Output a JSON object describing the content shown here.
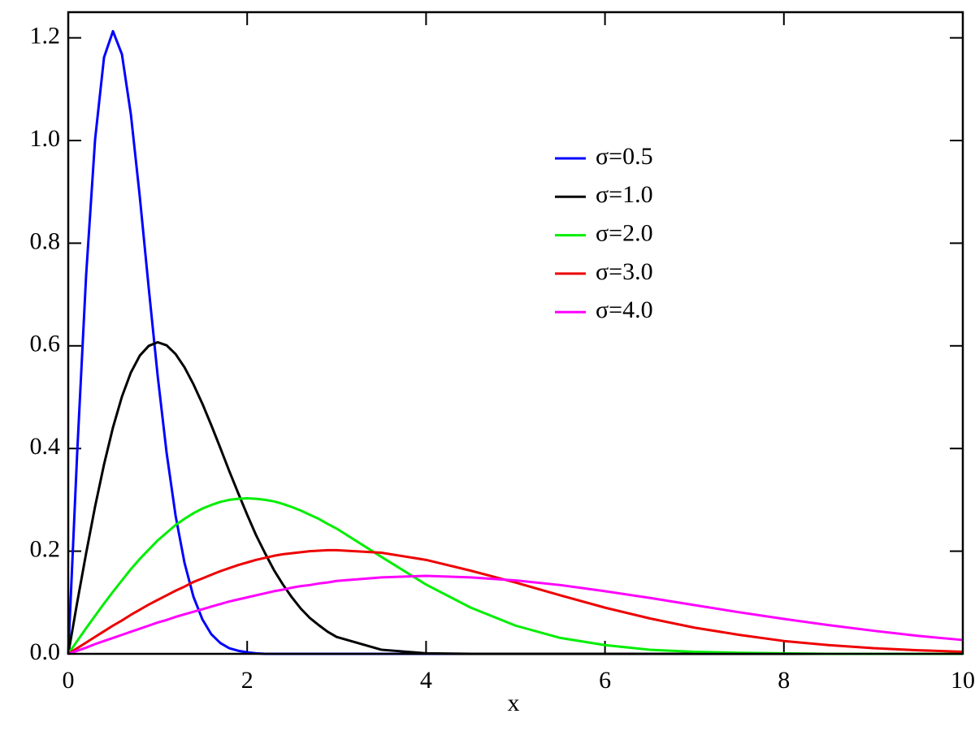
{
  "chart_data": {
    "type": "line",
    "xlabel": "x",
    "x": [
      0,
      0.1,
      0.2,
      0.3,
      0.4,
      0.5,
      0.6,
      0.7,
      0.8,
      0.9,
      1.0,
      1.1,
      1.2,
      1.3,
      1.4,
      1.5,
      1.6,
      1.7,
      1.8,
      1.9,
      2.0,
      2.1,
      2.2,
      2.3,
      2.4,
      2.5,
      2.6,
      2.7,
      2.8,
      2.9,
      3.0,
      3.5,
      4.0,
      4.5,
      5.0,
      5.5,
      6.0,
      6.5,
      7.0,
      7.5,
      8.0,
      8.5,
      9.0,
      9.5,
      10
    ],
    "series": [
      {
        "name": "σ=0.5",
        "color": "#0000ff",
        "values": [
          0,
          0.392,
          0.738,
          1.002,
          1.162,
          1.213,
          1.168,
          1.051,
          0.89,
          0.712,
          0.541,
          0.391,
          0.269,
          0.177,
          0.111,
          0.067,
          0.038,
          0.021,
          0.011,
          0.006,
          0.003,
          0.001,
          0,
          0,
          0,
          0,
          0,
          0,
          0,
          0,
          0,
          0,
          0,
          0,
          0,
          0,
          0,
          0,
          0,
          0,
          0,
          0,
          0,
          0,
          0
        ]
      },
      {
        "name": "σ=1.0",
        "color": "#000000",
        "values": [
          0,
          0.1,
          0.196,
          0.287,
          0.369,
          0.441,
          0.501,
          0.548,
          0.581,
          0.6,
          0.607,
          0.601,
          0.584,
          0.558,
          0.525,
          0.487,
          0.445,
          0.401,
          0.356,
          0.313,
          0.271,
          0.231,
          0.196,
          0.163,
          0.135,
          0.11,
          0.088,
          0.07,
          0.056,
          0.043,
          0.033,
          0.008,
          0.001,
          0,
          0,
          0,
          0,
          0,
          0,
          0,
          0,
          0,
          0,
          0,
          0
        ]
      },
      {
        "name": "σ=2.0",
        "color": "#00ee00",
        "values": [
          0,
          0.025,
          0.05,
          0.074,
          0.098,
          0.121,
          0.143,
          0.165,
          0.185,
          0.203,
          0.221,
          0.236,
          0.251,
          0.263,
          0.274,
          0.283,
          0.29,
          0.296,
          0.3,
          0.302,
          0.303,
          0.302,
          0.3,
          0.297,
          0.292,
          0.286,
          0.279,
          0.271,
          0.263,
          0.253,
          0.244,
          0.189,
          0.135,
          0.09,
          0.055,
          0.031,
          0.017,
          0.008,
          0.004,
          0.002,
          0.001,
          0,
          0,
          0,
          0
        ]
      },
      {
        "name": "σ=3.0",
        "color": "#ee0000",
        "values": [
          0,
          0.011,
          0.022,
          0.033,
          0.044,
          0.055,
          0.065,
          0.076,
          0.086,
          0.096,
          0.105,
          0.114,
          0.123,
          0.131,
          0.14,
          0.147,
          0.154,
          0.161,
          0.167,
          0.173,
          0.178,
          0.183,
          0.187,
          0.191,
          0.194,
          0.196,
          0.198,
          0.2,
          0.201,
          0.202,
          0.202,
          0.197,
          0.183,
          0.162,
          0.139,
          0.114,
          0.09,
          0.069,
          0.051,
          0.037,
          0.025,
          0.017,
          0.011,
          0.007,
          0.004
        ]
      },
      {
        "name": "σ=4.0",
        "color": "#ff00ff",
        "values": [
          0,
          0.006,
          0.012,
          0.019,
          0.025,
          0.031,
          0.037,
          0.043,
          0.049,
          0.055,
          0.061,
          0.066,
          0.072,
          0.077,
          0.082,
          0.087,
          0.092,
          0.097,
          0.102,
          0.106,
          0.11,
          0.114,
          0.118,
          0.122,
          0.125,
          0.129,
          0.132,
          0.134,
          0.137,
          0.139,
          0.142,
          0.149,
          0.152,
          0.149,
          0.143,
          0.134,
          0.122,
          0.109,
          0.095,
          0.081,
          0.068,
          0.056,
          0.045,
          0.035,
          0.027
        ]
      }
    ],
    "xlim": [
      0,
      10
    ],
    "xticks": [
      0,
      2,
      4,
      6,
      8,
      10
    ],
    "ylim": [
      0,
      1.25
    ],
    "yticks": [
      {
        "value": 0,
        "label": "0.0"
      },
      0.2,
      0.4,
      0.6,
      0.8,
      {
        "value": 1,
        "label": "1.0"
      },
      1.2
    ],
    "grid": false,
    "legend_loc": "upper right"
  }
}
